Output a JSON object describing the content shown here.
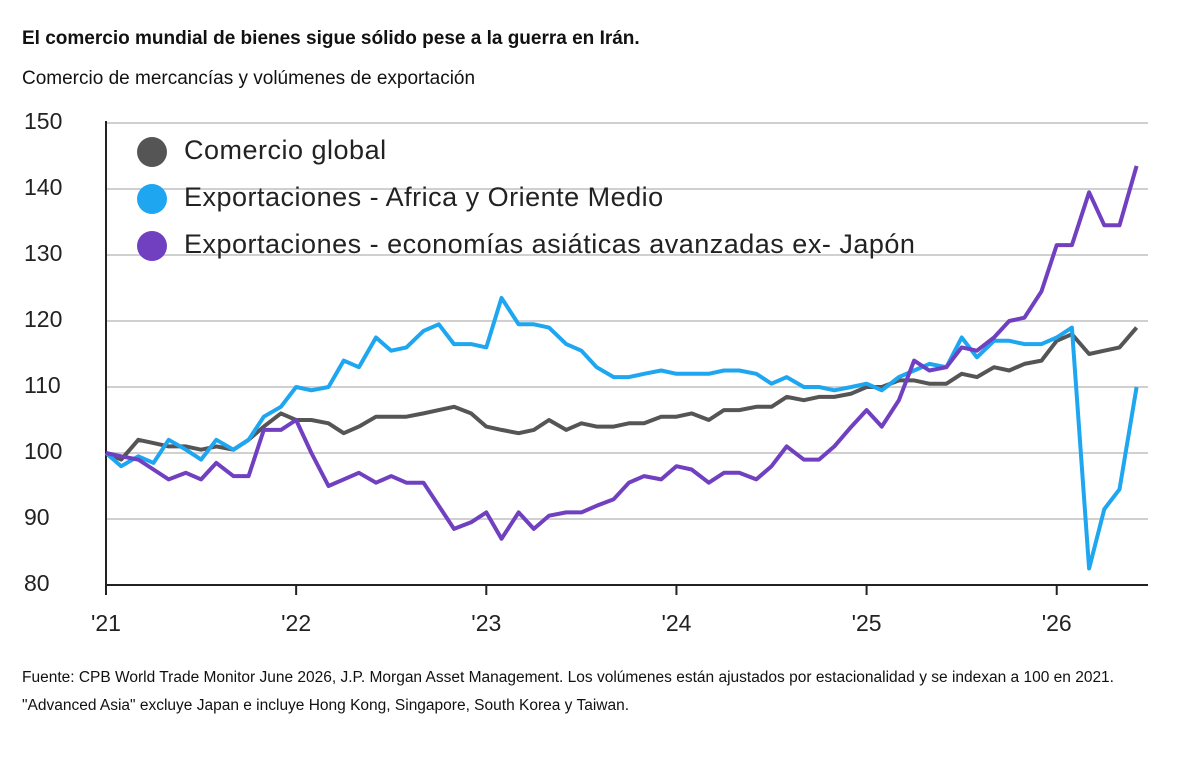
{
  "chart_data": {
    "type": "line",
    "title": "El comercio mundial de bienes sigue sólido pese a la guerra en Irán.",
    "subtitle": "Comercio de mercancías y volúmenes de exportación",
    "footnote": "Fuente: CPB World Trade Monitor June 2026, J.P. Morgan Asset Management. Los volúmenes están ajustados por estacionalidad y se indexan a 100 en 2021. \"Advanced Asia\" excluye Japan e incluye Hong Kong, Singapore, South Korea y Taiwan.",
    "x": [
      2021.0,
      2021.08,
      2021.17,
      2021.25,
      2021.33,
      2021.42,
      2021.5,
      2021.58,
      2021.67,
      2021.75,
      2021.83,
      2021.92,
      2022.0,
      2022.08,
      2022.17,
      2022.25,
      2022.33,
      2022.42,
      2022.5,
      2022.58,
      2022.67,
      2022.75,
      2022.83,
      2022.92,
      2023.0,
      2023.08,
      2023.17,
      2023.25,
      2023.33,
      2023.42,
      2023.5,
      2023.58,
      2023.67,
      2023.75,
      2023.83,
      2023.92,
      2024.0,
      2024.08,
      2024.17,
      2024.25,
      2024.33,
      2024.42,
      2024.5,
      2024.58,
      2024.67,
      2024.75,
      2024.83,
      2024.92,
      2025.0,
      2025.08,
      2025.17,
      2025.25,
      2025.33,
      2025.42,
      2025.5,
      2025.58,
      2025.67,
      2025.75,
      2025.83,
      2025.92,
      2026.0,
      2026.08,
      2026.17,
      2026.25,
      2026.33,
      2026.42
    ],
    "series": [
      {
        "name": "Comercio global",
        "color": "#555555",
        "values": [
          100,
          99,
          102,
          101.5,
          101,
          101,
          100.5,
          101,
          100.5,
          102,
          104,
          106,
          105,
          105,
          104.5,
          103,
          104,
          105.5,
          105.5,
          105.5,
          106,
          106.5,
          107,
          106,
          104,
          103.5,
          103,
          103.5,
          105,
          103.5,
          104.5,
          104,
          104,
          104.5,
          104.5,
          105.5,
          105.5,
          106,
          105,
          106.5,
          106.5,
          107,
          107,
          108.5,
          108,
          108.5,
          108.5,
          109,
          110,
          110,
          111,
          111,
          110.5,
          110.5,
          112,
          111.5,
          113,
          112.5,
          113.5,
          114,
          117,
          118,
          115,
          115.5,
          116,
          119
        ]
      },
      {
        "name": "Exportaciones - Africa y Oriente Medio",
        "color": "#1ea6f0",
        "values": [
          100,
          98,
          99.5,
          98.5,
          102,
          100.5,
          99,
          102,
          100.5,
          102,
          105.5,
          107,
          110,
          109.5,
          110,
          114,
          113,
          117.5,
          115.5,
          116,
          118.5,
          119.5,
          116.5,
          116.5,
          116,
          123.5,
          119.5,
          119.5,
          119,
          116.5,
          115.5,
          113,
          111.5,
          111.5,
          112,
          112.5,
          112,
          112,
          112,
          112.5,
          112.5,
          112,
          110.5,
          111.5,
          110,
          110,
          109.5,
          110,
          110.5,
          109.5,
          111.5,
          112.5,
          113.5,
          113,
          117.5,
          114.5,
          117,
          117,
          116.5,
          116.5,
          117.5,
          119,
          82.5,
          91.5,
          94.5,
          110
        ]
      },
      {
        "name": "Exportaciones - economías asiáticas avanzadas ex- Japón",
        "color": "#7040c0",
        "values": [
          100,
          99.5,
          99,
          97.5,
          96,
          97,
          96,
          98.5,
          96.5,
          96.5,
          103.5,
          103.5,
          105,
          100,
          95,
          96,
          97,
          95.5,
          96.5,
          95.5,
          95.5,
          92,
          88.5,
          89.5,
          91,
          87,
          91,
          88.5,
          90.5,
          91,
          91,
          92,
          93,
          95.5,
          96.5,
          96,
          98,
          97.5,
          95.5,
          97,
          97,
          96,
          98,
          101,
          99,
          99,
          101,
          104,
          106.5,
          104,
          108,
          114,
          112.5,
          113,
          116,
          115.5,
          117.5,
          120,
          120.5,
          124.5,
          131.5,
          131.5,
          139.5,
          134.5,
          134.5,
          143.5
        ]
      }
    ],
    "xlim": [
      2021,
      2026.48
    ],
    "xticks": [
      {
        "value": 2021,
        "label": "'21"
      },
      {
        "value": 2022,
        "label": "'22"
      },
      {
        "value": 2023,
        "label": "'23"
      },
      {
        "value": 2024,
        "label": "'24"
      },
      {
        "value": 2025,
        "label": "'25"
      },
      {
        "value": 2026,
        "label": "'26"
      }
    ],
    "ylim": [
      80,
      150
    ],
    "yticks": [
      80,
      90,
      100,
      110,
      120,
      130,
      140,
      150
    ],
    "grid": true
  }
}
